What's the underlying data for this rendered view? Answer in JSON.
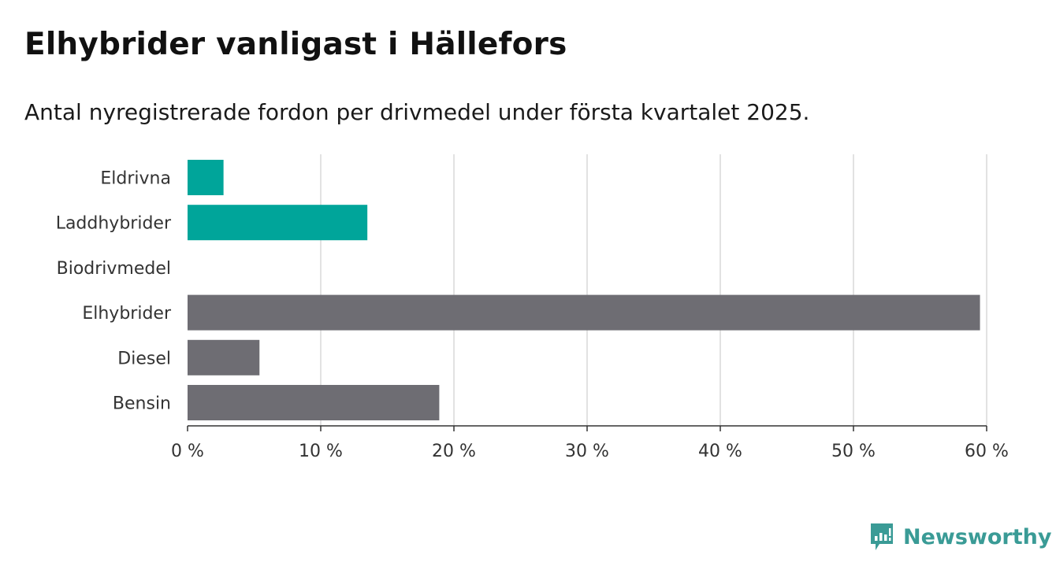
{
  "header": {
    "title": "Elhybrider vanligast i Hällefors",
    "subtitle": "Antal nyregistrerade fordon per drivmedel under första kvartalet 2025."
  },
  "chart_data": {
    "type": "bar",
    "orientation": "horizontal",
    "categories": [
      "Eldrivna",
      "Laddhybrider",
      "Biodrivmedel",
      "Elhybrider",
      "Diesel",
      "Bensin"
    ],
    "values": [
      2.7,
      13.5,
      0,
      59.5,
      5.4,
      18.9
    ],
    "bar_colors": [
      "#00a59a",
      "#00a59a",
      "#6e6d73",
      "#6e6d73",
      "#6e6d73",
      "#6e6d73"
    ],
    "xlim": [
      0,
      60
    ],
    "xticks": [
      0,
      10,
      20,
      30,
      40,
      50,
      60
    ],
    "xtick_labels": [
      "0 %",
      "10 %",
      "20 %",
      "30 %",
      "40 %",
      "50 %",
      "60 %"
    ],
    "grid": true,
    "legend": false
  },
  "branding": {
    "name": "Newsworthy",
    "color": "#3a9b96"
  }
}
